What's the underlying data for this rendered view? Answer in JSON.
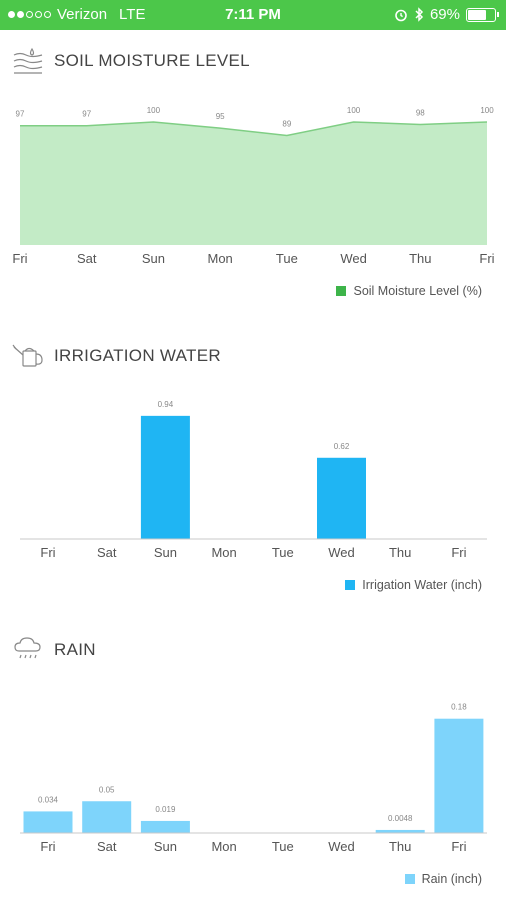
{
  "status_bar": {
    "carrier": "Verizon",
    "network": "LTE",
    "time": "7:11 PM",
    "battery": "69%",
    "battery_level": 0.69,
    "icons": [
      "signal-dots-icon",
      "alarm-icon",
      "bluetooth-icon",
      "battery-icon"
    ]
  },
  "colors": {
    "status_bar": "#4cc74a",
    "soil": "#c3ebc6",
    "soil_line": "#7fce84",
    "soil_legend": "#3db44a",
    "irrigation": "#1fb5f3",
    "rain": "#7ed4fb"
  },
  "sections": {
    "soil": {
      "title": "SOIL MOISTURE LEVEL",
      "icon": "soil-moisture-icon"
    },
    "irrigation": {
      "title": "IRRIGATION WATER",
      "icon": "watering-can-icon"
    },
    "rain": {
      "title": "RAIN",
      "icon": "rain-cloud-icon"
    }
  },
  "chart_data": [
    {
      "type": "area",
      "categories": [
        "Fri",
        "Sat",
        "Sun",
        "Mon",
        "Tue",
        "Wed",
        "Thu",
        "Fri"
      ],
      "values": [
        97,
        97,
        100,
        95,
        89,
        100,
        98,
        100
      ],
      "value_labels": [
        "97",
        "97",
        "100",
        "95",
        "89",
        "100",
        "98",
        "100"
      ],
      "ylim": [
        0,
        100
      ],
      "legend": "Soil Moisture Level (%)",
      "legend_position": "bottom-right"
    },
    {
      "type": "bar",
      "categories": [
        "Fri",
        "Sat",
        "Sun",
        "Mon",
        "Tue",
        "Wed",
        "Thu",
        "Fri"
      ],
      "values": [
        0,
        0,
        0.94,
        0,
        0,
        0.62,
        0,
        0
      ],
      "value_labels": [
        "",
        "",
        "0.94",
        "",
        "",
        "0.62",
        "",
        ""
      ],
      "ylim": [
        0,
        1.0
      ],
      "legend": "Irrigation Water (inch)",
      "legend_position": "bottom-right"
    },
    {
      "type": "bar",
      "categories": [
        "Fri",
        "Sat",
        "Sun",
        "Mon",
        "Tue",
        "Wed",
        "Thu",
        "Fri"
      ],
      "values": [
        0.034,
        0.05,
        0.019,
        0,
        0,
        0,
        0.0048,
        0.18
      ],
      "value_labels": [
        "0.034",
        "0.05",
        "0.019",
        "",
        "",
        "",
        "0.0048",
        "0.18"
      ],
      "ylim": [
        0,
        0.2
      ],
      "legend": "Rain (inch)",
      "legend_position": "bottom-right"
    }
  ]
}
